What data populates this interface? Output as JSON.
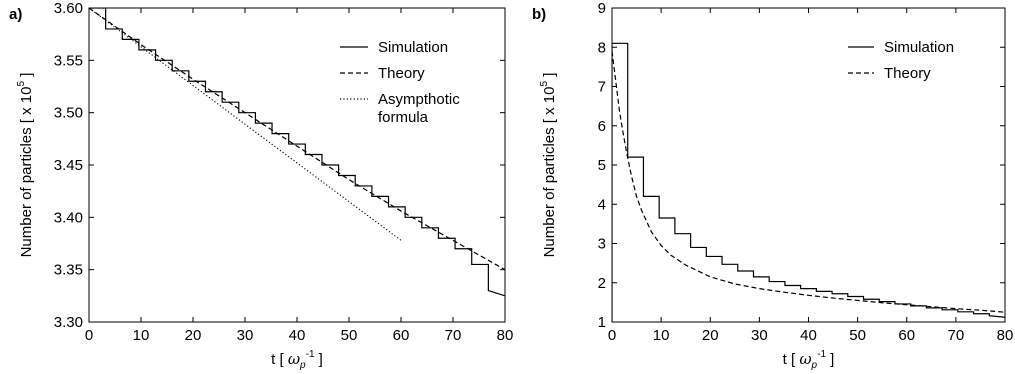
{
  "chart_data": [
    {
      "panel_label": "a)",
      "type": "line",
      "xlabel": {
        "pre": "t [ ",
        "sym": "ω",
        "sub": "p",
        "sup": "-1",
        "post": " ]"
      },
      "ylabel": {
        "pre": "Number of particles [ x 10",
        "sup": "5",
        "post": " ]"
      },
      "xlim": [
        0,
        80
      ],
      "ylim": [
        3.3,
        3.6
      ],
      "xticks": [
        0,
        10,
        20,
        30,
        40,
        50,
        60,
        70,
        80
      ],
      "yticks": [
        3.3,
        3.35,
        3.4,
        3.45,
        3.5,
        3.55,
        3.6
      ],
      "ytick_labels": [
        "3.30",
        "3.35",
        "3.40",
        "3.45",
        "3.50",
        "3.55",
        "3.60"
      ],
      "legend_position": "top-right",
      "series": [
        {
          "name": "Simulation",
          "style": "solid",
          "x": [
            0,
            3.2,
            3.2,
            6.4,
            6.4,
            9.6,
            9.6,
            12.8,
            12.8,
            16,
            16,
            19.2,
            19.2,
            22.4,
            22.4,
            25.6,
            25.6,
            28.8,
            28.8,
            32,
            32,
            35.2,
            35.2,
            38.4,
            38.4,
            41.6,
            41.6,
            44.8,
            44.8,
            48,
            48,
            51.2,
            51.2,
            54.4,
            54.4,
            57.6,
            57.6,
            60.8,
            60.8,
            64,
            64,
            67.2,
            67.2,
            70.4,
            70.4,
            73.6,
            73.6,
            76.8,
            76.8,
            80
          ],
          "y": [
            3.6,
            3.6,
            3.58,
            3.58,
            3.57,
            3.57,
            3.56,
            3.56,
            3.55,
            3.55,
            3.54,
            3.54,
            3.53,
            3.53,
            3.52,
            3.52,
            3.51,
            3.51,
            3.5,
            3.5,
            3.49,
            3.49,
            3.48,
            3.48,
            3.47,
            3.47,
            3.46,
            3.46,
            3.45,
            3.45,
            3.44,
            3.44,
            3.43,
            3.43,
            3.42,
            3.42,
            3.41,
            3.41,
            3.4,
            3.4,
            3.39,
            3.39,
            3.38,
            3.38,
            3.37,
            3.37,
            3.355,
            3.355,
            3.33,
            3.325
          ]
        },
        {
          "name": "Theory",
          "style": "dashed",
          "x": [
            0,
            10,
            20,
            30,
            40,
            50,
            60,
            70,
            80
          ],
          "y": [
            3.6,
            3.565,
            3.532,
            3.5,
            3.468,
            3.436,
            3.406,
            3.378,
            3.35
          ]
        },
        {
          "name": "Asympthotic formula",
          "name_lines": [
            "Asympthotic",
            "formula"
          ],
          "style": "dotted",
          "x": [
            0,
            60
          ],
          "y": [
            3.6,
            3.378
          ]
        }
      ]
    },
    {
      "panel_label": "b)",
      "type": "line",
      "xlabel": {
        "pre": "t [ ",
        "sym": "ω",
        "sub": "p",
        "sup": "-1",
        "post": " ]"
      },
      "ylabel": {
        "pre": "Number of particles [ x 10",
        "sup": "5",
        "post": " ]"
      },
      "xlim": [
        0,
        80
      ],
      "ylim": [
        1,
        9
      ],
      "xticks": [
        0,
        10,
        20,
        30,
        40,
        50,
        60,
        70,
        80
      ],
      "yticks": [
        1,
        2,
        3,
        4,
        5,
        6,
        7,
        8,
        9
      ],
      "ytick_labels": [
        "1",
        "2",
        "3",
        "4",
        "5",
        "6",
        "7",
        "8",
        "9"
      ],
      "legend_position": "top-right",
      "series": [
        {
          "name": "Simulation",
          "style": "solid",
          "x": [
            0,
            0,
            3.2,
            3.2,
            6.4,
            6.4,
            9.6,
            9.6,
            12.8,
            12.8,
            16,
            16,
            19.2,
            19.2,
            22.4,
            22.4,
            25.6,
            25.6,
            28.8,
            28.8,
            32,
            32,
            35.2,
            35.2,
            38.4,
            38.4,
            41.6,
            41.6,
            44.8,
            44.8,
            48,
            48,
            51.2,
            51.2,
            54.4,
            54.4,
            57.6,
            57.6,
            60.8,
            60.8,
            64,
            64,
            67.2,
            67.2,
            70.4,
            70.4,
            73.6,
            73.6,
            76.8,
            76.8,
            80
          ],
          "y": [
            1,
            8.1,
            8.1,
            5.2,
            5.2,
            4.2,
            4.2,
            3.65,
            3.65,
            3.25,
            3.25,
            2.9,
            2.9,
            2.67,
            2.67,
            2.47,
            2.47,
            2.3,
            2.3,
            2.15,
            2.15,
            2.03,
            2.03,
            1.93,
            1.93,
            1.85,
            1.85,
            1.78,
            1.78,
            1.72,
            1.72,
            1.65,
            1.65,
            1.58,
            1.58,
            1.52,
            1.52,
            1.46,
            1.46,
            1.41,
            1.41,
            1.36,
            1.36,
            1.31,
            1.31,
            1.26,
            1.26,
            1.21,
            1.21,
            1.16,
            1.12
          ]
        },
        {
          "name": "Theory",
          "style": "dashed",
          "x": [
            0,
            0.5,
            1,
            1.5,
            2,
            3,
            4,
            5,
            6,
            8,
            10,
            12,
            15,
            20,
            25,
            30,
            35,
            40,
            45,
            50,
            55,
            60,
            65,
            70,
            75,
            80
          ],
          "y": [
            7.9,
            7.4,
            6.9,
            6.4,
            6.0,
            5.3,
            4.7,
            4.2,
            3.85,
            3.3,
            2.95,
            2.7,
            2.45,
            2.15,
            1.97,
            1.85,
            1.76,
            1.68,
            1.61,
            1.55,
            1.49,
            1.44,
            1.39,
            1.34,
            1.3,
            1.25
          ]
        }
      ]
    }
  ]
}
